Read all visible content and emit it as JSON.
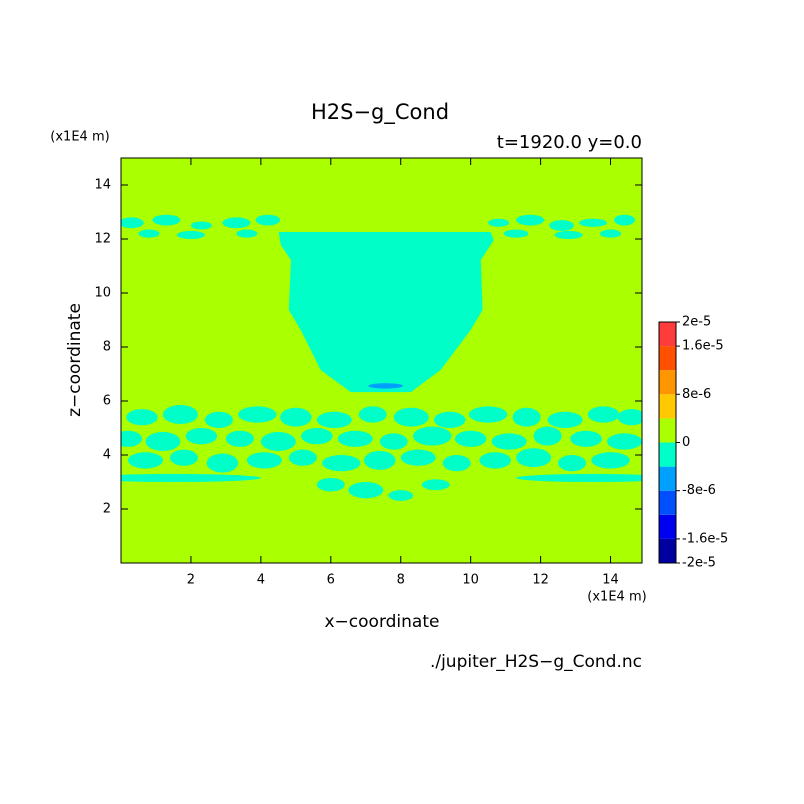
{
  "chart_data": {
    "type": "contour",
    "title": "H2S−g_Cond",
    "subtitle": "t=1920.0 y=0.0",
    "x_unit": "(x1E4 m)",
    "y_unit": "(x1E4 m)",
    "x_label": "x−coordinate",
    "y_label": "z−coordinate",
    "source": "./jupiter_H2S−g_Cond.nc",
    "xlim": [
      0,
      14.9
    ],
    "ylim": [
      0,
      15
    ],
    "xticks": [
      2,
      4,
      6,
      8,
      10,
      12,
      14
    ],
    "yticks": [
      2,
      4,
      6,
      8,
      10,
      12,
      14
    ],
    "levels": [
      -2e-05,
      -1.6e-05,
      -1.2e-05,
      -8e-06,
      -4e-06,
      0,
      4e-06,
      8e-06,
      1.2e-05,
      1.6e-05,
      2e-05
    ],
    "colors": [
      "#0000a0",
      "#0000f0",
      "#0050ff",
      "#00a0ff",
      "#00ffc8",
      "#aaff00",
      "#ffc800",
      "#ff9600",
      "#ff5000",
      "#ff3c3c"
    ],
    "colorbar_ticks": [
      {
        "value": 2e-05,
        "label": "2e-5"
      },
      {
        "value": 1.6e-05,
        "label": "1.6e-5"
      },
      {
        "value": 8e-06,
        "label": "8e-6"
      },
      0,
      {
        "value": -8e-06,
        "label": "-8e-6"
      },
      {
        "value": -1.6e-05,
        "label": "-1.6e-5"
      },
      {
        "value": -2e-05,
        "label": "-2e-5"
      }
    ],
    "field": {
      "background": 1e-06,
      "regions": [
        {
          "value": -2e-06,
          "points": [
            [
              4.51,
              12.26
            ],
            [
              10.57,
              12.26
            ],
            [
              10.66,
              11.96
            ],
            [
              10.29,
              11.22
            ],
            [
              10.34,
              9.37
            ],
            [
              10.0,
              8.63
            ],
            [
              9.14,
              7.15
            ],
            [
              8.29,
              6.33
            ],
            [
              6.57,
              6.33
            ],
            [
              5.71,
              7.15
            ],
            [
              5.14,
              8.63
            ],
            [
              4.8,
              9.37
            ],
            [
              4.86,
              11.22
            ],
            [
              4.57,
              11.78
            ]
          ]
        }
      ],
      "patches": {
        "x": [
          0.6,
          1.7,
          2.8,
          3.9,
          5.0,
          6.1,
          7.2,
          8.3,
          9.4,
          10.5,
          11.6,
          12.7,
          13.8,
          14.6,
          0.2,
          1.2,
          2.3,
          3.4,
          4.5,
          5.6,
          6.7,
          7.8,
          8.9,
          10.0,
          11.1,
          12.2,
          13.3,
          14.4,
          0.7,
          1.8,
          2.9,
          4.1,
          5.2,
          6.3,
          7.4,
          8.5,
          9.6,
          10.7,
          11.8,
          12.9,
          14.0,
          6.0,
          7.0,
          8.0,
          9.0,
          1.5,
          13.5,
          0.3,
          1.3,
          2.3,
          3.3,
          4.2,
          10.8,
          11.7,
          12.6,
          13.5,
          14.4,
          0.8,
          2.0,
          3.6,
          11.3,
          12.8,
          14.0,
          7.57
        ],
        "z": [
          5.4,
          5.5,
          5.3,
          5.5,
          5.4,
          5.3,
          5.5,
          5.4,
          5.3,
          5.5,
          5.4,
          5.3,
          5.5,
          5.4,
          4.6,
          4.5,
          4.7,
          4.6,
          4.5,
          4.7,
          4.6,
          4.5,
          4.7,
          4.6,
          4.5,
          4.7,
          4.6,
          4.5,
          3.8,
          3.9,
          3.7,
          3.8,
          3.9,
          3.7,
          3.8,
          3.9,
          3.7,
          3.8,
          3.9,
          3.7,
          3.8,
          2.9,
          2.7,
          2.5,
          2.9,
          3.15,
          3.15,
          12.6,
          12.7,
          12.5,
          12.6,
          12.7,
          12.6,
          12.7,
          12.5,
          12.6,
          12.7,
          12.2,
          12.15,
          12.2,
          12.2,
          12.15,
          12.2,
          6.56
        ],
        "rx": [
          0.45,
          0.5,
          0.4,
          0.55,
          0.45,
          0.5,
          0.4,
          0.5,
          0.45,
          0.55,
          0.4,
          0.5,
          0.45,
          0.4,
          0.4,
          0.5,
          0.45,
          0.4,
          0.5,
          0.45,
          0.5,
          0.4,
          0.55,
          0.45,
          0.5,
          0.4,
          0.45,
          0.5,
          0.5,
          0.4,
          0.45,
          0.5,
          0.4,
          0.55,
          0.45,
          0.5,
          0.4,
          0.45,
          0.5,
          0.4,
          0.55,
          0.4,
          0.5,
          0.35,
          0.4,
          2.5,
          2.2,
          0.35,
          0.4,
          0.3,
          0.4,
          0.35,
          0.3,
          0.4,
          0.35,
          0.4,
          0.3,
          0.3,
          0.4,
          0.3,
          0.35,
          0.4,
          0.3,
          0.5
        ],
        "rz": [
          0.3,
          0.35,
          0.3,
          0.3,
          0.35,
          0.3,
          0.3,
          0.35,
          0.3,
          0.3,
          0.35,
          0.3,
          0.3,
          0.3,
          0.3,
          0.35,
          0.3,
          0.3,
          0.35,
          0.3,
          0.3,
          0.3,
          0.35,
          0.3,
          0.3,
          0.35,
          0.3,
          0.3,
          0.3,
          0.3,
          0.35,
          0.3,
          0.3,
          0.3,
          0.35,
          0.3,
          0.3,
          0.3,
          0.35,
          0.3,
          0.3,
          0.25,
          0.3,
          0.2,
          0.2,
          0.15,
          0.15,
          0.2,
          0.2,
          0.15,
          0.2,
          0.2,
          0.15,
          0.2,
          0.2,
          0.15,
          0.2,
          0.15,
          0.15,
          0.15,
          0.15,
          0.15,
          0.15,
          0.1
        ],
        "values": [
          -2e-06,
          -2e-06,
          -2e-06,
          -2e-06,
          -2e-06,
          -2e-06,
          -2e-06,
          -2e-06,
          -2e-06,
          -2e-06,
          -2e-06,
          -2e-06,
          -2e-06,
          -2e-06,
          -2e-06,
          -2e-06,
          -2e-06,
          -2e-06,
          -2e-06,
          -2e-06,
          -2e-06,
          -2e-06,
          -2e-06,
          -2e-06,
          -2e-06,
          -2e-06,
          -2e-06,
          -2e-06,
          -2e-06,
          -2e-06,
          -2e-06,
          -2e-06,
          -2e-06,
          -2e-06,
          -2e-06,
          -2e-06,
          -2e-06,
          -2e-06,
          -2e-06,
          -2e-06,
          -2e-06,
          -2e-06,
          -2e-06,
          -2e-06,
          -2e-06,
          -2e-06,
          -2e-06,
          -2e-06,
          -2e-06,
          -2e-06,
          -2e-06,
          -2e-06,
          -2e-06,
          -2e-06,
          -2e-06,
          -2e-06,
          -2e-06,
          -2e-06,
          -2e-06,
          -2e-06,
          -2e-06,
          -2e-06,
          -2e-06,
          -6e-06
        ]
      }
    }
  }
}
